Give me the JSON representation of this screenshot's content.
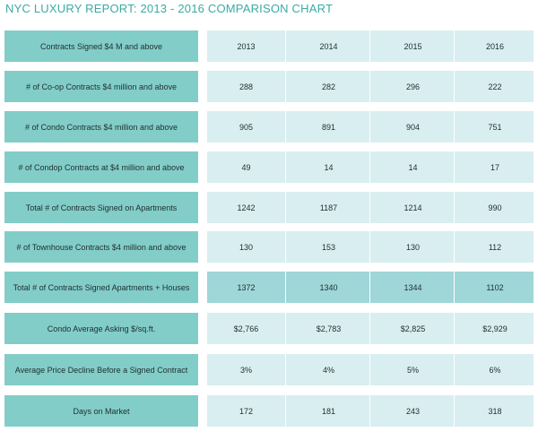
{
  "chart_data": {
    "type": "table",
    "title": "NYC LUXURY REPORT: 2013 - 2016 COMPARISON CHART",
    "columns": [
      "Contracts Signed $4 M and above",
      "2013",
      "2014",
      "2015",
      "2016"
    ],
    "rows": [
      {
        "label": "# of Co-op Contracts $4 million and above",
        "values": [
          "288",
          "282",
          "296",
          "222"
        ],
        "highlight": false
      },
      {
        "label": "# of Condo Contracts $4 million and above",
        "values": [
          "905",
          "891",
          "904",
          "751"
        ],
        "highlight": false
      },
      {
        "label": "# of Condop Contracts at $4 million and above",
        "values": [
          "49",
          "14",
          "14",
          "17"
        ],
        "highlight": false
      },
      {
        "label": "Total # of Contracts Signed on Apartments",
        "values": [
          "1242",
          "1187",
          "1214",
          "990"
        ],
        "highlight": false
      },
      {
        "label": "# of Townhouse Contracts $4 million and above",
        "values": [
          "130",
          "153",
          "130",
          "112"
        ],
        "highlight": false
      },
      {
        "label": "Total # of Contracts Signed Apartments + Houses",
        "values": [
          "1372",
          "1340",
          "1344",
          "1102"
        ],
        "highlight": true
      },
      {
        "label": "Condo Average Asking $/sq.ft.",
        "values": [
          "$2,766",
          "$2,783",
          "$2,825",
          "$2,929"
        ],
        "highlight": false
      },
      {
        "label": "Average Price Decline Before a Signed Contract",
        "values": [
          "3%",
          "4%",
          "5%",
          "6%"
        ],
        "highlight": false
      },
      {
        "label": "Days on Market",
        "values": [
          "172",
          "181",
          "243",
          "318"
        ],
        "highlight": false
      }
    ]
  }
}
